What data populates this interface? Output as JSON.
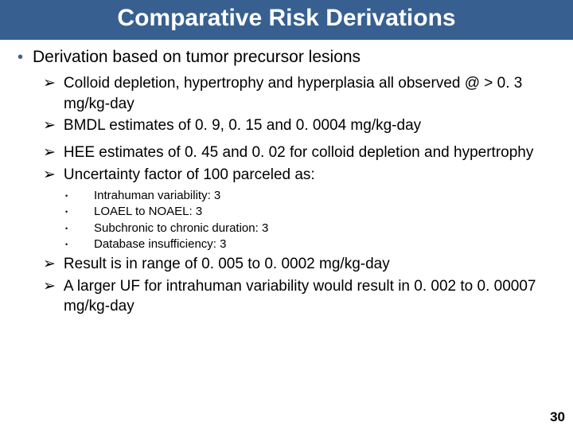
{
  "colors": {
    "banner_bg": "#376091",
    "banner_text": "#ffffff",
    "body_text": "#000000",
    "bullet_dot": "#3a5f8a"
  },
  "title": "Comparative Risk Derivations",
  "main_bullet": "Derivation based on tumor precursor lesions",
  "arrows": {
    "a1": "Colloid depletion, hypertrophy and hyperplasia all observed @ > 0. 3 mg/kg-day",
    "a2": "BMDL estimates of 0. 9, 0. 15 and 0. 0004 mg/kg-day",
    "a3": "HEE estimates of 0. 45 and 0. 02 for colloid depletion and hypertrophy",
    "a4": "Uncertainty factor of 100 parceled as:",
    "a5": "Result is in range of 0. 005 to 0. 0002 mg/kg-day",
    "a6": "A larger UF for intrahuman variability would result in 0. 002 to 0. 00007 mg/kg-day"
  },
  "subs": {
    "s1": "Intrahuman variability: 3",
    "s2": "LOAEL to NOAEL: 3",
    "s3": "Subchronic to chronic duration: 3",
    "s4": "Database insufficiency: 3"
  },
  "page_number": "30",
  "glyphs": {
    "arrow": "➢",
    "dot": "•"
  }
}
